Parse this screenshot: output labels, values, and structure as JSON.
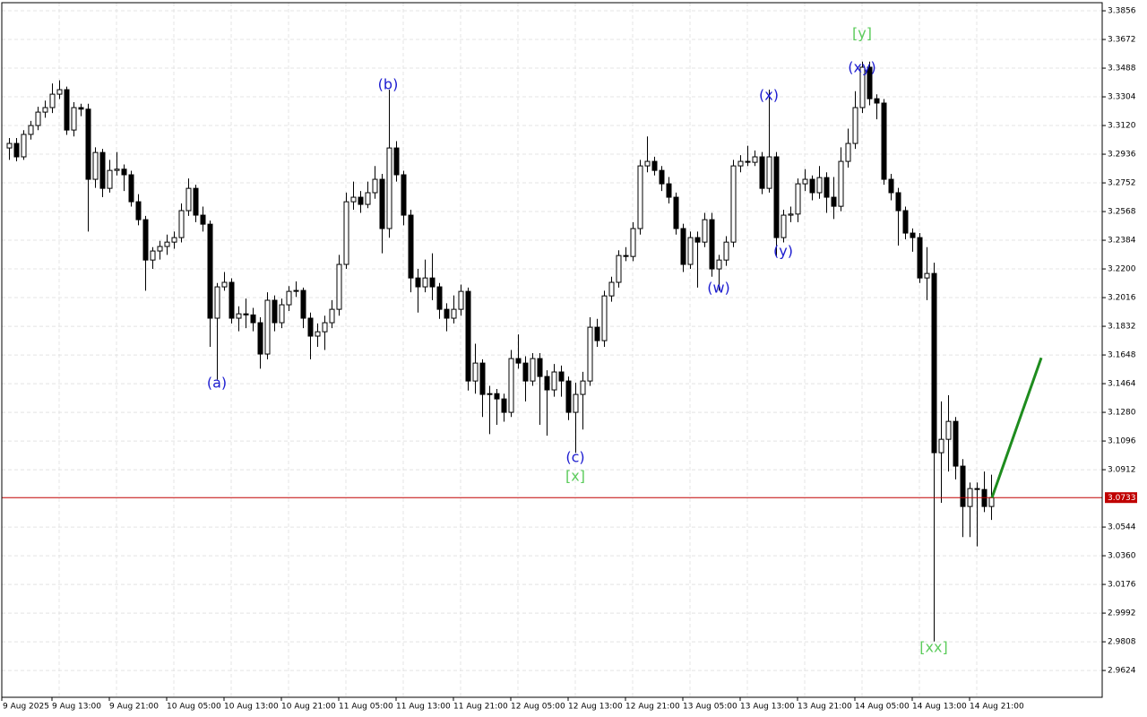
{
  "chart_data": {
    "type": "candlestick",
    "up_color": "#ffffff",
    "down_color": "#000000",
    "outline_color": "#000000",
    "grid": true,
    "ylim": [
      2.9452,
      3.3908
    ],
    "yticks": [
      3.3856,
      3.3672,
      3.3488,
      3.3304,
      {
        "value": 3.312,
        "label": "3.3120"
      },
      3.2936,
      3.2752,
      3.2568,
      3.2384,
      {
        "value": 3.22,
        "label": "3.2200"
      },
      3.2016,
      3.1832,
      3.1648,
      3.1464,
      {
        "value": 3.128,
        "label": "3.1280"
      },
      3.1096,
      3.0912,
      3.0544,
      {
        "value": 3.036,
        "label": "3.0360"
      },
      3.0176,
      2.9992,
      2.9808,
      2.9624
    ],
    "current_price": 3.0733,
    "current_price_color": "#c00000",
    "projection": [
      3.0733,
      3.163
    ],
    "projection_color": "#1e8c1e",
    "annotations": [
      {
        "text": "(a)",
        "color": "#1c1cd0"
      },
      {
        "text": "(b)",
        "color": "#1c1cd0"
      },
      {
        "text": "(c)",
        "color": "#1c1cd0"
      },
      {
        "text": "[x]",
        "color": "#5ccc5c"
      },
      {
        "text": "(w)",
        "color": "#1c1cd0"
      },
      {
        "text": "(x)",
        "color": "#1c1cd0"
      },
      {
        "text": "(y)",
        "color": "#1c1cd0"
      },
      {
        "text": "(xy)",
        "color": "#1c1cd0"
      },
      {
        "text": "[y]",
        "color": "#5ccc5c"
      },
      {
        "text": "[xx]",
        "color": "#5ccc5c"
      }
    ],
    "categories": [
      "9 Aug 2025",
      null,
      null,
      null,
      null,
      null,
      null,
      "9 Aug 13:00",
      null,
      null,
      null,
      null,
      null,
      null,
      null,
      "9 Aug 21:00",
      null,
      null,
      null,
      null,
      null,
      null,
      null,
      "10 Aug 05:00",
      null,
      null,
      null,
      null,
      null,
      null,
      null,
      "10 Aug 13:00",
      null,
      null,
      null,
      null,
      null,
      null,
      null,
      "10 Aug 21:00",
      null,
      null,
      null,
      null,
      null,
      null,
      null,
      "11 Aug 05:00",
      null,
      null,
      null,
      null,
      null,
      null,
      null,
      "11 Aug 13:00",
      null,
      null,
      null,
      null,
      null,
      null,
      null,
      "11 Aug 21:00",
      null,
      null,
      null,
      null,
      null,
      null,
      null,
      "12 Aug 05:00",
      null,
      null,
      null,
      null,
      null,
      null,
      null,
      "12 Aug 13:00",
      null,
      null,
      null,
      null,
      null,
      null,
      null,
      "12 Aug 21:00",
      null,
      null,
      null,
      null,
      null,
      null,
      null,
      "13 Aug 05:00",
      null,
      null,
      null,
      null,
      null,
      null,
      null,
      "13 Aug 13:00",
      null,
      null,
      null,
      null,
      null,
      null,
      null,
      "13 Aug 21:00",
      null,
      null,
      null,
      null,
      null,
      null,
      null,
      "14 Aug 05:00",
      null,
      null,
      null,
      null,
      null,
      null,
      null,
      "14 Aug 13:00",
      null,
      null,
      null,
      null,
      null,
      null,
      null,
      "14 Aug 21:00",
      null,
      null
    ],
    "candles": [
      [
        3.2976,
        3.304,
        3.29,
        3.3005
      ],
      [
        3.3005,
        3.304,
        3.289,
        3.2919
      ],
      [
        3.2919,
        3.309,
        3.29,
        3.3063
      ],
      [
        3.3063,
        3.315,
        3.303,
        3.312
      ],
      [
        3.312,
        3.324,
        3.309,
        3.3206
      ],
      [
        3.3206,
        3.328,
        3.317,
        3.3235
      ],
      [
        3.3235,
        3.339,
        3.32,
        3.3321
      ],
      [
        3.3321,
        3.341,
        3.329,
        3.335
      ],
      [
        3.335,
        3.337,
        3.306,
        3.3091
      ],
      [
        3.3091,
        3.327,
        3.305,
        3.3235
      ],
      [
        3.3235,
        3.326,
        3.318,
        3.3225
      ],
      [
        3.3225,
        3.326,
        3.244,
        3.2775
      ],
      [
        3.2775,
        3.298,
        3.272,
        3.2947
      ],
      [
        3.2947,
        3.297,
        3.266,
        3.2717
      ],
      [
        3.2717,
        3.29,
        3.269,
        3.2832
      ],
      [
        3.2832,
        3.295,
        3.28,
        3.284
      ],
      [
        3.284,
        3.287,
        3.27,
        3.2804
      ],
      [
        3.2804,
        3.283,
        3.26,
        3.2631
      ],
      [
        3.2631,
        3.268,
        3.248,
        3.2516
      ],
      [
        3.2516,
        3.254,
        3.206,
        3.2257
      ],
      [
        3.2257,
        3.234,
        3.22,
        3.2315
      ],
      [
        3.2315,
        3.238,
        3.226,
        3.2344
      ],
      [
        3.2344,
        3.242,
        3.229,
        3.2372
      ],
      [
        3.2372,
        3.244,
        3.233,
        3.2401
      ],
      [
        3.2401,
        3.262,
        3.237,
        3.2574
      ],
      [
        3.2574,
        3.278,
        3.254,
        3.2717
      ],
      [
        3.2717,
        3.274,
        3.25,
        3.2545
      ],
      [
        3.2545,
        3.26,
        3.244,
        3.2487
      ],
      [
        3.2487,
        3.251,
        3.17,
        3.1884
      ],
      [
        3.1884,
        3.211,
        3.149,
        3.2085
      ],
      [
        3.2085,
        3.218,
        3.206,
        3.2114
      ],
      [
        3.2114,
        3.214,
        3.185,
        3.1884
      ],
      [
        3.1884,
        3.196,
        3.18,
        3.1912
      ],
      [
        3.1912,
        3.201,
        3.182,
        3.1905
      ],
      [
        3.1905,
        3.195,
        3.18,
        3.1855
      ],
      [
        3.1855,
        3.189,
        3.156,
        3.1654
      ],
      [
        3.1654,
        3.205,
        3.162,
        3.1999
      ],
      [
        3.1999,
        3.203,
        3.18,
        3.1855
      ],
      [
        3.1855,
        3.201,
        3.182,
        3.197
      ],
      [
        3.197,
        3.209,
        3.193,
        3.2056
      ],
      [
        3.2056,
        3.212,
        3.202,
        3.2062
      ],
      [
        3.2062,
        3.208,
        3.182,
        3.1884
      ],
      [
        3.1884,
        3.192,
        3.162,
        3.1769
      ],
      [
        3.1769,
        3.185,
        3.17,
        3.1797
      ],
      [
        3.1797,
        3.19,
        3.168,
        3.1855
      ],
      [
        3.1855,
        3.2,
        3.182,
        3.1941
      ],
      [
        3.1941,
        3.229,
        3.19,
        3.2229
      ],
      [
        3.2229,
        3.269,
        3.22,
        3.2631
      ],
      [
        3.2631,
        3.276,
        3.258,
        3.266
      ],
      [
        3.266,
        3.27,
        3.256,
        3.2614
      ],
      [
        3.2614,
        3.276,
        3.259,
        3.2689
      ],
      [
        3.2689,
        3.286,
        3.265,
        3.2775
      ],
      [
        3.2775,
        3.281,
        3.23,
        3.2459
      ],
      [
        3.2459,
        3.335,
        3.24,
        3.2976
      ],
      [
        3.2976,
        3.302,
        3.276,
        3.2804
      ],
      [
        3.2804,
        3.283,
        3.248,
        3.2545
      ],
      [
        3.2545,
        3.258,
        3.205,
        3.2142
      ],
      [
        3.2142,
        3.22,
        3.192,
        3.2085
      ],
      [
        3.2085,
        3.226,
        3.205,
        3.2142
      ],
      [
        3.2142,
        3.23,
        3.2,
        3.2085
      ],
      [
        3.2085,
        3.211,
        3.188,
        3.1941
      ],
      [
        3.1941,
        3.198,
        3.18,
        3.1884
      ],
      [
        3.1884,
        3.203,
        3.185,
        3.1941
      ],
      [
        3.1941,
        3.21,
        3.19,
        3.2056
      ],
      [
        3.2056,
        3.208,
        3.142,
        3.1481
      ],
      [
        3.1481,
        3.172,
        3.14,
        3.1596
      ],
      [
        3.1596,
        3.162,
        3.125,
        3.1395
      ],
      [
        3.1395,
        3.145,
        3.114,
        3.14
      ],
      [
        3.14,
        3.143,
        3.12,
        3.1366
      ],
      [
        3.1366,
        3.14,
        3.122,
        3.128
      ],
      [
        3.128,
        3.168,
        3.125,
        3.1625
      ],
      [
        3.1625,
        3.178,
        3.156,
        3.1596
      ],
      [
        3.1596,
        3.164,
        3.135,
        3.1481
      ],
      [
        3.1481,
        3.166,
        3.145,
        3.1625
      ],
      [
        3.1625,
        3.166,
        3.12,
        3.151
      ],
      [
        3.151,
        3.155,
        3.113,
        3.1424
      ],
      [
        3.1424,
        3.159,
        3.138,
        3.1539
      ],
      [
        3.1539,
        3.158,
        3.138,
        3.1481
      ],
      [
        3.1481,
        3.151,
        3.123,
        3.128
      ],
      [
        3.128,
        3.147,
        3.102,
        3.1395
      ],
      [
        3.1395,
        3.154,
        3.117,
        3.1481
      ],
      [
        3.1481,
        3.189,
        3.145,
        3.1826
      ],
      [
        3.1826,
        3.188,
        3.17,
        3.174
      ],
      [
        3.174,
        3.206,
        3.17,
        3.2027
      ],
      [
        3.2027,
        3.215,
        3.199,
        3.2114
      ],
      [
        3.2114,
        3.232,
        3.208,
        3.2286
      ],
      [
        3.2286,
        3.234,
        3.225,
        3.228
      ],
      [
        3.228,
        3.25,
        3.225,
        3.2459
      ],
      [
        3.2459,
        3.29,
        3.242,
        3.2861
      ],
      [
        3.2861,
        3.305,
        3.282,
        3.289
      ],
      [
        3.289,
        3.292,
        3.28,
        3.2832
      ],
      [
        3.2832,
        3.286,
        3.27,
        3.2746
      ],
      [
        3.2746,
        3.279,
        3.262,
        3.266
      ],
      [
        3.266,
        3.269,
        3.242,
        3.2459
      ],
      [
        3.2459,
        3.249,
        3.218,
        3.2229
      ],
      [
        3.2229,
        3.244,
        3.22,
        3.2401
      ],
      [
        3.2401,
        3.244,
        3.208,
        3.2372
      ],
      [
        3.2372,
        3.256,
        3.234,
        3.2516
      ],
      [
        3.2516,
        3.256,
        3.215,
        3.22
      ],
      [
        3.22,
        3.229,
        3.206,
        3.2257
      ],
      [
        3.2257,
        3.241,
        3.222,
        3.2372
      ],
      [
        3.2372,
        3.29,
        3.234,
        3.2861
      ],
      [
        3.2861,
        3.293,
        3.282,
        3.289
      ],
      [
        3.289,
        3.299,
        3.286,
        3.2884
      ],
      [
        3.2884,
        3.296,
        3.286,
        3.2919
      ],
      [
        3.2919,
        3.295,
        3.268,
        3.2717
      ],
      [
        3.2717,
        3.335,
        3.269,
        3.2919
      ],
      [
        3.2919,
        3.295,
        3.228,
        3.2401
      ],
      [
        3.2401,
        3.258,
        3.237,
        3.2545
      ],
      [
        3.2545,
        3.26,
        3.25,
        3.2552
      ],
      [
        3.2552,
        3.278,
        3.25,
        3.2746
      ],
      [
        3.2746,
        3.284,
        3.27,
        3.2775
      ],
      [
        3.2775,
        3.28,
        3.264,
        3.2689
      ],
      [
        3.2689,
        3.286,
        3.265,
        3.2786
      ],
      [
        3.2786,
        3.282,
        3.256,
        3.266
      ],
      [
        3.266,
        3.279,
        3.252,
        3.2602
      ],
      [
        3.2602,
        3.298,
        3.257,
        3.289
      ],
      [
        3.289,
        3.31,
        3.285,
        3.3005
      ],
      [
        3.3005,
        3.334,
        3.297,
        3.3235
      ],
      [
        3.3235,
        3.353,
        3.32,
        3.3494
      ],
      [
        3.3494,
        3.353,
        3.325,
        3.3292
      ],
      [
        3.3292,
        3.332,
        3.316,
        3.3264
      ],
      [
        3.3264,
        3.329,
        3.274,
        3.2775
      ],
      [
        3.2775,
        3.281,
        3.264,
        3.2689
      ],
      [
        3.2689,
        3.272,
        3.235,
        3.2574
      ],
      [
        3.2574,
        3.26,
        3.239,
        3.243
      ],
      [
        3.243,
        3.246,
        3.231,
        3.2401
      ],
      [
        3.2401,
        3.243,
        3.211,
        3.2142
      ],
      [
        3.2142,
        3.234,
        3.2,
        3.2171
      ],
      [
        3.2171,
        3.224,
        2.981,
        3.1021
      ],
      [
        3.1021,
        3.135,
        3.07,
        3.1107
      ],
      [
        3.1107,
        3.139,
        3.09,
        3.1222
      ],
      [
        3.1222,
        3.125,
        3.085,
        3.0935
      ],
      [
        3.0935,
        3.098,
        3.048,
        3.0676
      ],
      [
        3.0676,
        3.083,
        3.048,
        3.0791
      ],
      [
        3.0791,
        3.083,
        3.042,
        3.0785
      ],
      [
        3.0785,
        3.09,
        3.064,
        3.0676
      ],
      [
        3.0676,
        3.088,
        3.059,
        3.0733
      ]
    ]
  }
}
